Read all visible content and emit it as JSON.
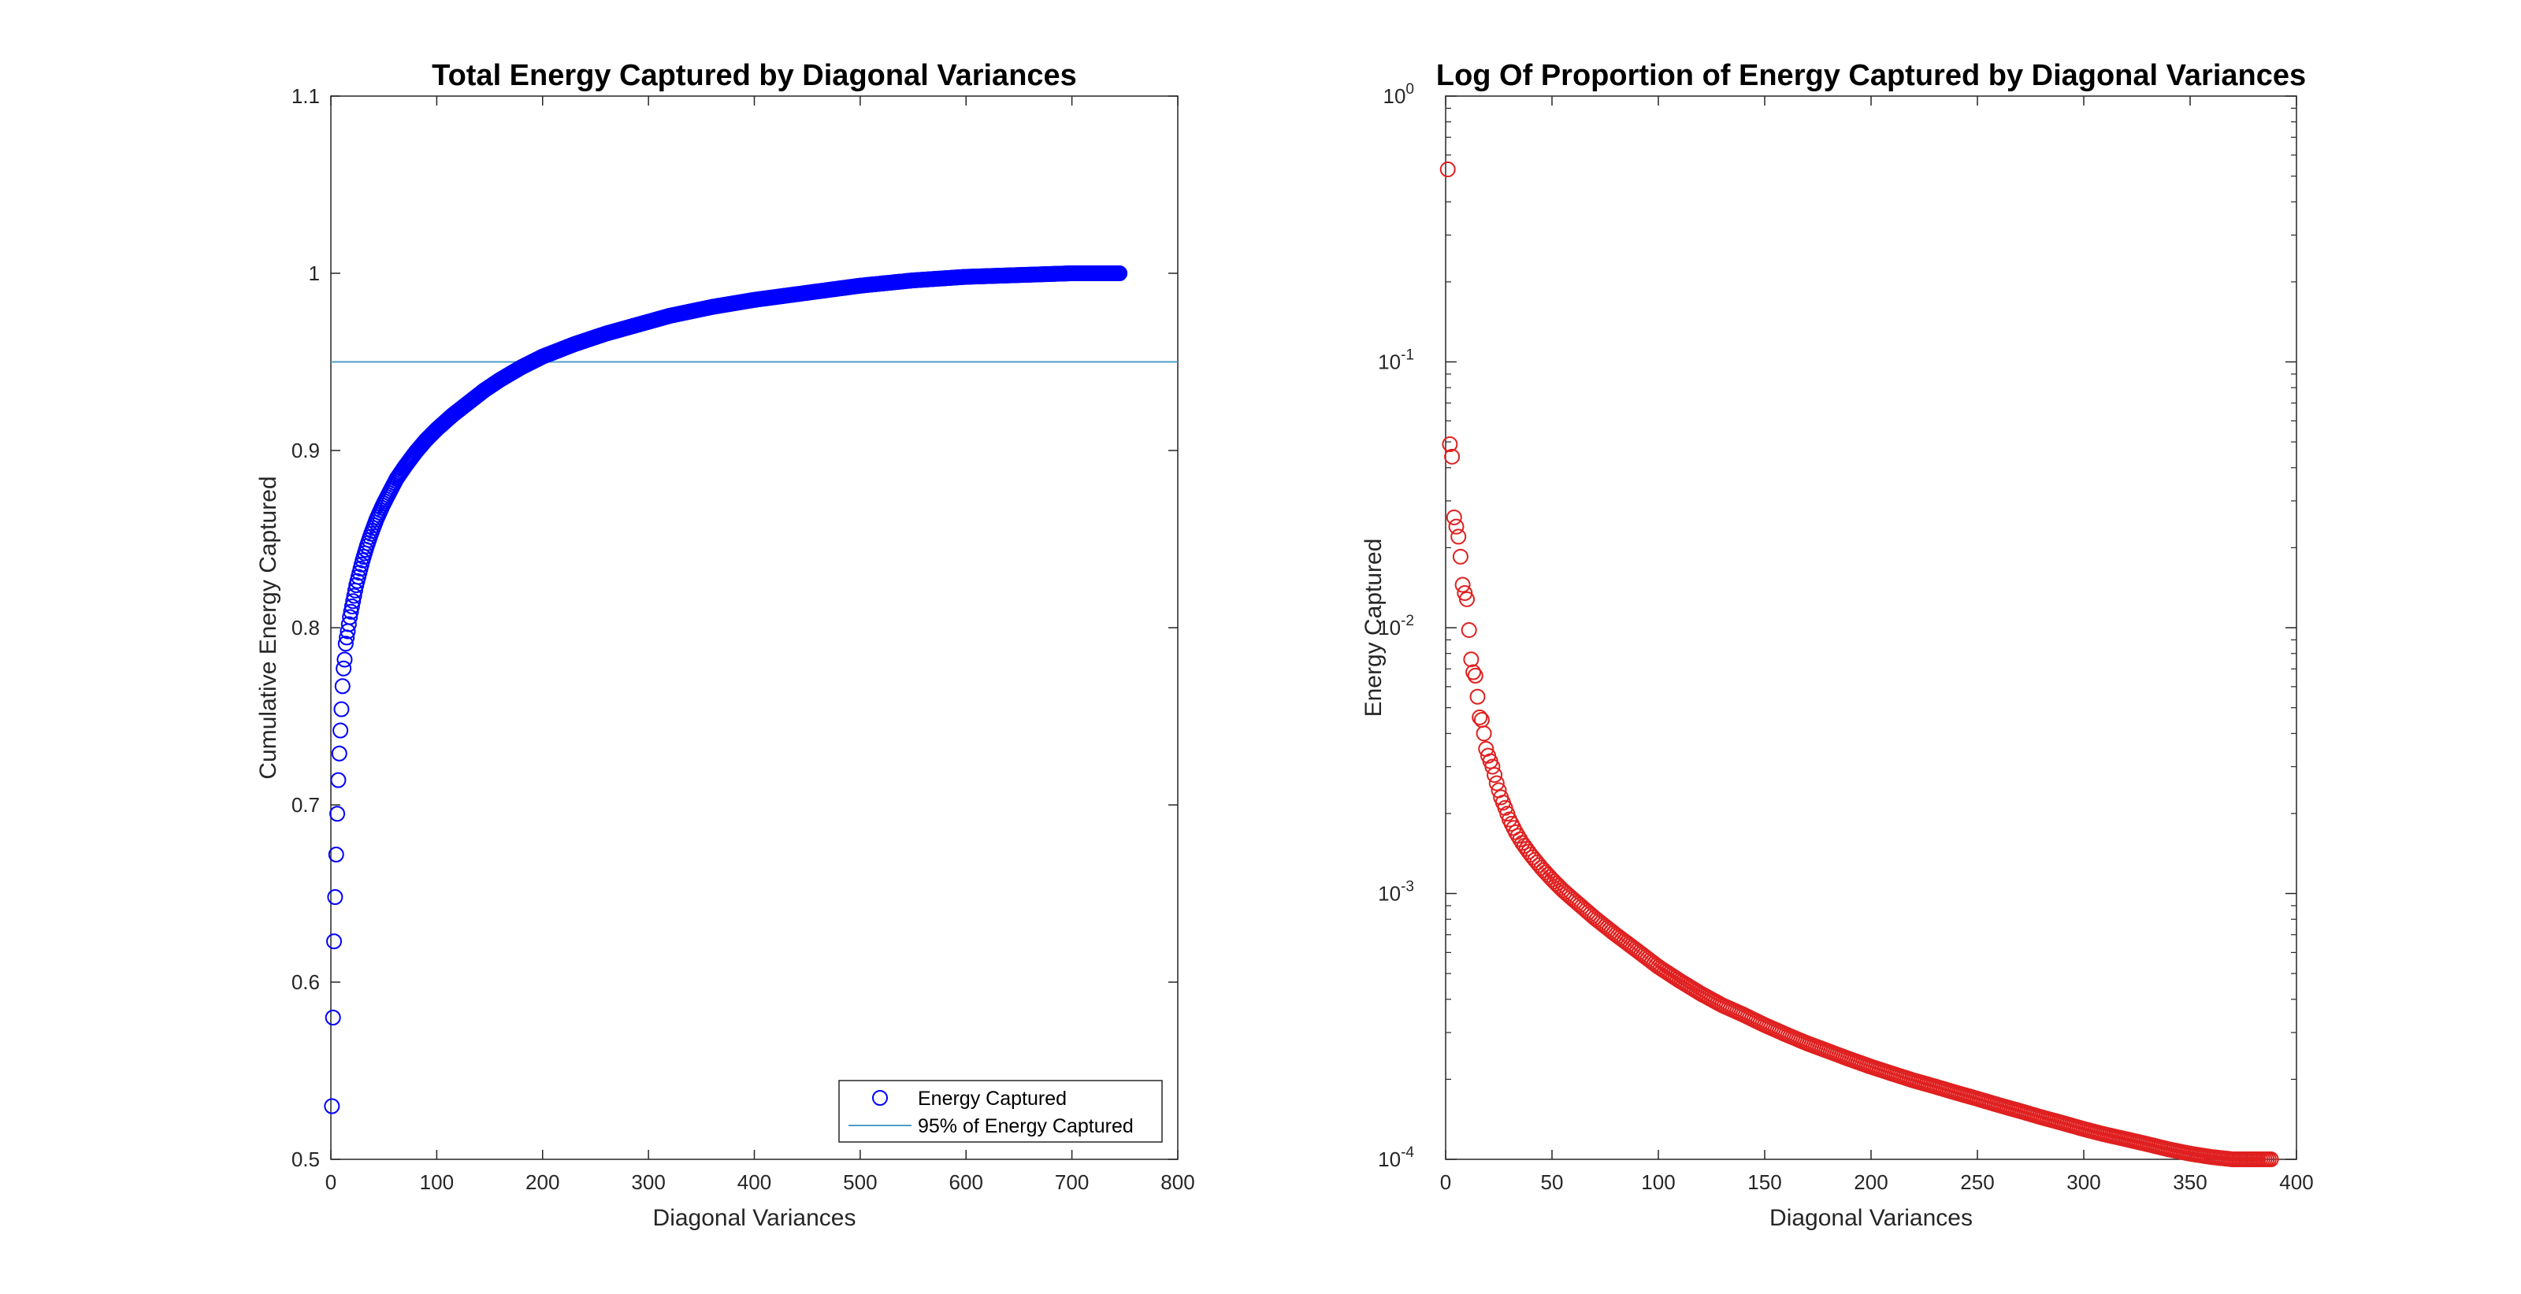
{
  "chart_data": [
    {
      "type": "scatter",
      "title": "Total Energy Captured by Diagonal Variances",
      "xlabel": "Diagonal Variances",
      "ylabel": "Cumulative Energy Captured",
      "xlim": [
        0,
        800
      ],
      "ylim": [
        0.5,
        1.1
      ],
      "xticks": [
        "0",
        "100",
        "200",
        "300",
        "400",
        "500",
        "600",
        "700",
        "800"
      ],
      "yticks": [
        "0.5",
        "0.6",
        "0.7",
        "0.8",
        "0.9",
        "1",
        "1.1"
      ],
      "grid": false,
      "legend_position": "bottom-right",
      "colors": {
        "series": "#0000ff",
        "threshold": "#4b9fc8"
      },
      "series": [
        {
          "name": "Energy Captured",
          "marker": "circle",
          "points": [
            [
              1,
              0.53
            ],
            [
              2,
              0.58
            ],
            [
              3,
              0.623
            ],
            [
              4,
              0.648
            ],
            [
              5,
              0.672
            ],
            [
              6,
              0.695
            ],
            [
              7,
              0.714
            ],
            [
              8,
              0.729
            ],
            [
              9,
              0.742
            ],
            [
              10,
              0.754
            ],
            [
              11,
              0.767
            ],
            [
              12,
              0.777
            ],
            [
              13,
              0.782
            ],
            [
              14,
              0.791
            ],
            [
              16,
              0.798
            ],
            [
              18,
              0.806
            ],
            [
              20,
              0.812
            ],
            [
              22,
              0.818
            ],
            [
              24,
              0.824
            ],
            [
              27,
              0.831
            ],
            [
              30,
              0.838
            ],
            [
              34,
              0.846
            ],
            [
              38,
              0.853
            ],
            [
              43,
              0.861
            ],
            [
              49,
              0.869
            ],
            [
              55,
              0.876
            ],
            [
              62,
              0.884
            ],
            [
              70,
              0.891
            ],
            [
              80,
              0.899
            ],
            [
              90,
              0.906
            ],
            [
              100,
              0.912
            ],
            [
              115,
              0.92
            ],
            [
              130,
              0.927
            ],
            [
              145,
              0.934
            ],
            [
              160,
              0.94
            ],
            [
              180,
              0.947
            ],
            [
              200,
              0.953
            ],
            [
              230,
              0.96
            ],
            [
              260,
              0.966
            ],
            [
              290,
              0.971
            ],
            [
              320,
              0.976
            ],
            [
              360,
              0.981
            ],
            [
              400,
              0.985
            ],
            [
              450,
              0.989
            ],
            [
              500,
              0.993
            ],
            [
              550,
              0.996
            ],
            [
              600,
              0.998
            ],
            [
              650,
              0.999
            ],
            [
              700,
              1.0
            ],
            [
              745,
              1.0
            ]
          ]
        },
        {
          "name": "95% of Energy Captured",
          "type": "hline",
          "value": 0.95
        }
      ]
    },
    {
      "type": "scatter",
      "title": "Log Of Proportion of Energy Captured by Diagonal Variances",
      "xlabel": "Diagonal Variances",
      "ylabel": "Energy Captured",
      "xlim": [
        0,
        400
      ],
      "ylim": [
        0.0001,
        1
      ],
      "yscale": "log",
      "xticks": [
        "0",
        "50",
        "100",
        "150",
        "200",
        "250",
        "300",
        "350",
        "400"
      ],
      "yticks": [
        {
          "base": "10",
          "exp": "-4"
        },
        {
          "base": "10",
          "exp": "-3"
        },
        {
          "base": "10",
          "exp": "-2"
        },
        {
          "base": "10",
          "exp": "-1"
        },
        {
          "base": "10",
          "exp": "0"
        }
      ],
      "grid": false,
      "colors": {
        "series": "#e02020"
      },
      "series": [
        {
          "marker": "circle",
          "points": [
            [
              1,
              0.53
            ],
            [
              2,
              0.049
            ],
            [
              3,
              0.044
            ],
            [
              4,
              0.026
            ],
            [
              5,
              0.024
            ],
            [
              6,
              0.022
            ],
            [
              7,
              0.0185
            ],
            [
              8,
              0.0145
            ],
            [
              9,
              0.0135
            ],
            [
              10,
              0.0128
            ],
            [
              11,
              0.0098
            ],
            [
              12,
              0.0076
            ],
            [
              13,
              0.0068
            ],
            [
              14,
              0.0066
            ],
            [
              15,
              0.0055
            ],
            [
              16,
              0.0046
            ],
            [
              17,
              0.0045
            ],
            [
              18,
              0.004
            ],
            [
              19,
              0.0035
            ],
            [
              20,
              0.0033
            ],
            [
              22,
              0.003
            ],
            [
              24,
              0.0026
            ],
            [
              26,
              0.0023
            ],
            [
              28,
              0.0021
            ],
            [
              30,
              0.0019
            ],
            [
              33,
              0.0017
            ],
            [
              36,
              0.00155
            ],
            [
              40,
              0.0014
            ],
            [
              45,
              0.00125
            ],
            [
              50,
              0.00113
            ],
            [
              55,
              0.00103
            ],
            [
              60,
              0.00095
            ],
            [
              70,
              0.00081
            ],
            [
              80,
              0.0007
            ],
            [
              90,
              0.00061
            ],
            [
              100,
              0.00053
            ],
            [
              110,
              0.00047
            ],
            [
              120,
              0.00042
            ],
            [
              130,
              0.00038
            ],
            [
              140,
              0.00035
            ],
            [
              150,
              0.00032
            ],
            [
              160,
              0.000295
            ],
            [
              170,
              0.000273
            ],
            [
              180,
              0.000255
            ],
            [
              190,
              0.000238
            ],
            [
              200,
              0.000223
            ],
            [
              210,
              0.00021
            ],
            [
              220,
              0.000198
            ],
            [
              230,
              0.000188
            ],
            [
              240,
              0.000178
            ],
            [
              250,
              0.000169
            ],
            [
              260,
              0.00016
            ],
            [
              270,
              0.000152
            ],
            [
              280,
              0.000144
            ],
            [
              290,
              0.000137
            ],
            [
              300,
              0.00013
            ],
            [
              310,
              0.000124
            ],
            [
              320,
              0.000119
            ],
            [
              330,
              0.000114
            ],
            [
              340,
              0.000109
            ],
            [
              350,
              0.000105
            ],
            [
              360,
              0.000102
            ],
            [
              370,
              0.0001
            ],
            [
              380,
              0.0001
            ],
            [
              388,
              0.0001
            ]
          ]
        }
      ]
    }
  ]
}
